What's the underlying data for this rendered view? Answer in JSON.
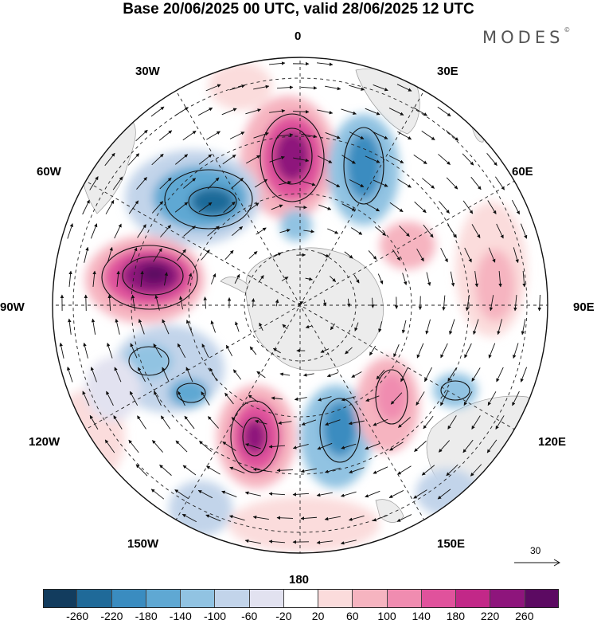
{
  "title": "Base 20/06/2025 00 UTC, valid 28/06/2025 12 UTC",
  "brand": "MODES",
  "brand_mark": "©",
  "lon_labels": {
    "top": "0",
    "top_right": "30E",
    "right_upper": "60E",
    "right": "90E",
    "right_lower": "120E",
    "bottom_right": "150E",
    "bottom": "180",
    "bottom_left": "150W",
    "left_lower": "120W",
    "left": "90W",
    "left_upper": "60W",
    "top_left": "30W"
  },
  "reference_vector": {
    "label": "30"
  },
  "colorbar": {
    "colors": [
      "#123c5e",
      "#1f6a99",
      "#3a8cc0",
      "#5fa8d3",
      "#91c3e2",
      "#c2d4ea",
      "#e2e2f0",
      "#ffffff",
      "#fbdcdc",
      "#f6b4c0",
      "#f08cb0",
      "#e0529c",
      "#c22888",
      "#8e157c",
      "#5c0a62"
    ],
    "ticks": [
      "-260",
      "-220",
      "-180",
      "-140",
      "-100",
      "-60",
      "-20",
      "20",
      "60",
      "100",
      "140",
      "180",
      "220",
      "260"
    ]
  }
}
